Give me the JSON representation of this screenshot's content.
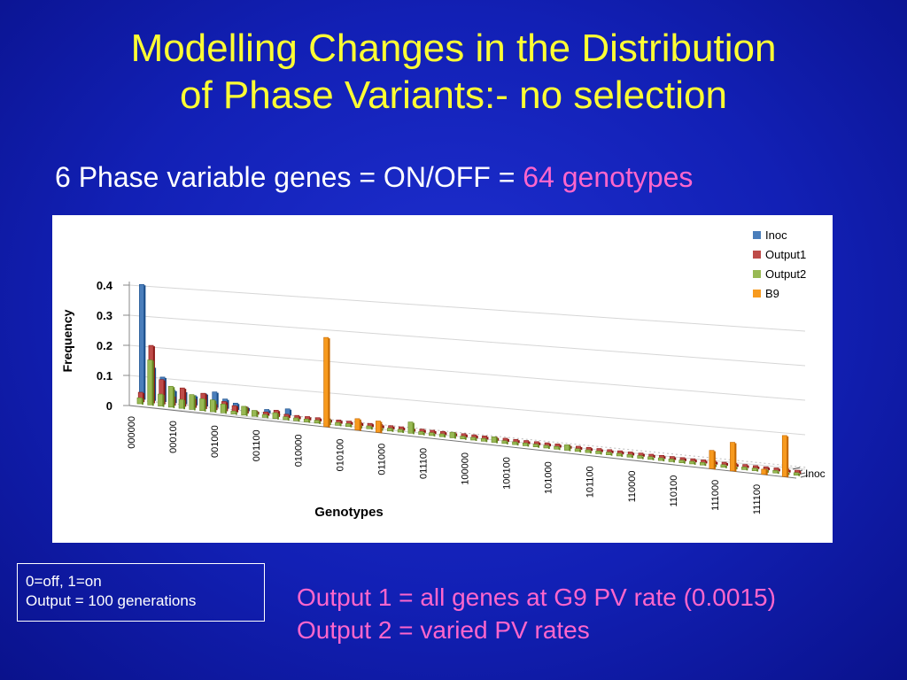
{
  "slide": {
    "title_line1": "Modelling Changes in the Distribution",
    "title_line2": "of Phase Variants:- no selection",
    "subtitle_prefix": "6 Phase variable genes = ON/OFF = ",
    "subtitle_highlight": "64 genotypes",
    "note_line1": "0=off, 1=on",
    "note_line2": "Output = 100 generations",
    "output_line1": "Output 1 = all genes at G9 PV rate (0.0015)",
    "output_line2": "Output 2 = varied PV rates",
    "colors": {
      "title": "#ffff33",
      "highlight": "#ff66cc",
      "text": "#ffffff"
    }
  },
  "chart_data": {
    "type": "bar",
    "style": "3d-clustered",
    "title": "",
    "xlabel": "Genotypes",
    "ylabel": "Frequency",
    "ylim": [
      0,
      0.4
    ],
    "yticks": [
      "0",
      "0.1",
      "0.2",
      "0.3",
      "0.4"
    ],
    "xtick_labels": [
      "000000",
      "000100",
      "001000",
      "001100",
      "010000",
      "010100",
      "011000",
      "011100",
      "100000",
      "100100",
      "101000",
      "101100",
      "110000",
      "110100",
      "111000",
      "111100"
    ],
    "depth_label": "Inoc",
    "series": [
      {
        "name": "Inoc",
        "color": "#4a7ebb",
        "values": [
          0.38,
          0.11,
          0.08,
          0.04,
          0.04,
          0.03,
          0.04,
          0.05,
          0.03,
          0.02,
          0.01,
          0.0,
          0.01,
          0.0,
          0.02,
          0.0,
          0,
          0,
          0,
          0,
          0,
          0,
          0,
          0,
          0,
          0,
          0,
          0,
          0,
          0,
          0,
          0,
          0,
          0,
          0,
          0,
          0,
          0,
          0,
          0,
          0,
          0,
          0,
          0,
          0,
          0,
          0,
          0,
          0,
          0,
          0,
          0,
          0,
          0,
          0,
          0,
          0,
          0,
          0,
          0,
          0,
          0,
          0,
          0
        ]
      },
      {
        "name": "Output1",
        "color": "#be4b48",
        "values": [
          0.03,
          0.19,
          0.08,
          0.03,
          0.06,
          0.03,
          0.05,
          0.02,
          0.03,
          0.02,
          0.02,
          0.01,
          0.01,
          0.02,
          0.01,
          0.01,
          0.01,
          0.01,
          0.01,
          0.01,
          0.01,
          0.01,
          0.01,
          0.01,
          0.01,
          0.01,
          0.01,
          0.01,
          0.01,
          0.01,
          0.01,
          0.01,
          0.01,
          0.01,
          0.01,
          0.01,
          0.01,
          0.01,
          0.01,
          0.01,
          0.01,
          0.01,
          0.01,
          0.01,
          0.01,
          0.01,
          0.01,
          0.01,
          0.01,
          0.01,
          0.01,
          0.01,
          0.01,
          0.01,
          0.01,
          0.01,
          0.01,
          0.01,
          0.01,
          0.01,
          0.01,
          0.01,
          0.01,
          0.01
        ]
      },
      {
        "name": "Output2",
        "color": "#98b954",
        "values": [
          0.02,
          0.15,
          0.04,
          0.07,
          0.03,
          0.05,
          0.04,
          0.04,
          0.03,
          0.01,
          0.03,
          0.02,
          0.01,
          0.02,
          0.01,
          0.01,
          0.01,
          0.01,
          0.02,
          0.01,
          0.01,
          0.01,
          0.01,
          0.01,
          0.01,
          0.01,
          0.04,
          0.01,
          0.01,
          0.01,
          0.02,
          0.01,
          0.01,
          0.01,
          0.02,
          0.01,
          0.01,
          0.01,
          0.01,
          0.01,
          0.01,
          0.02,
          0.01,
          0.01,
          0.01,
          0.01,
          0.01,
          0.01,
          0.01,
          0.01,
          0.01,
          0.01,
          0.01,
          0.01,
          0.01,
          0.01,
          0.01,
          0.01,
          0.01,
          0.01,
          0.01,
          0.01,
          0.01,
          0.01
        ]
      },
      {
        "name": "B9",
        "color": "#f79a1e",
        "values": [
          0,
          0,
          0,
          0,
          0,
          0,
          0,
          0,
          0,
          0,
          0,
          0,
          0,
          0,
          0,
          0,
          0,
          0,
          0.31,
          0,
          0,
          0.04,
          0,
          0.04,
          0,
          0,
          0,
          0,
          0,
          0,
          0,
          0,
          0,
          0,
          0,
          0,
          0,
          0,
          0,
          0,
          0,
          0,
          0,
          0,
          0,
          0,
          0,
          0,
          0,
          0,
          0,
          0,
          0,
          0,
          0,
          0.07,
          0,
          0.11,
          0,
          0,
          0.02,
          0,
          0.16,
          0
        ]
      }
    ]
  }
}
